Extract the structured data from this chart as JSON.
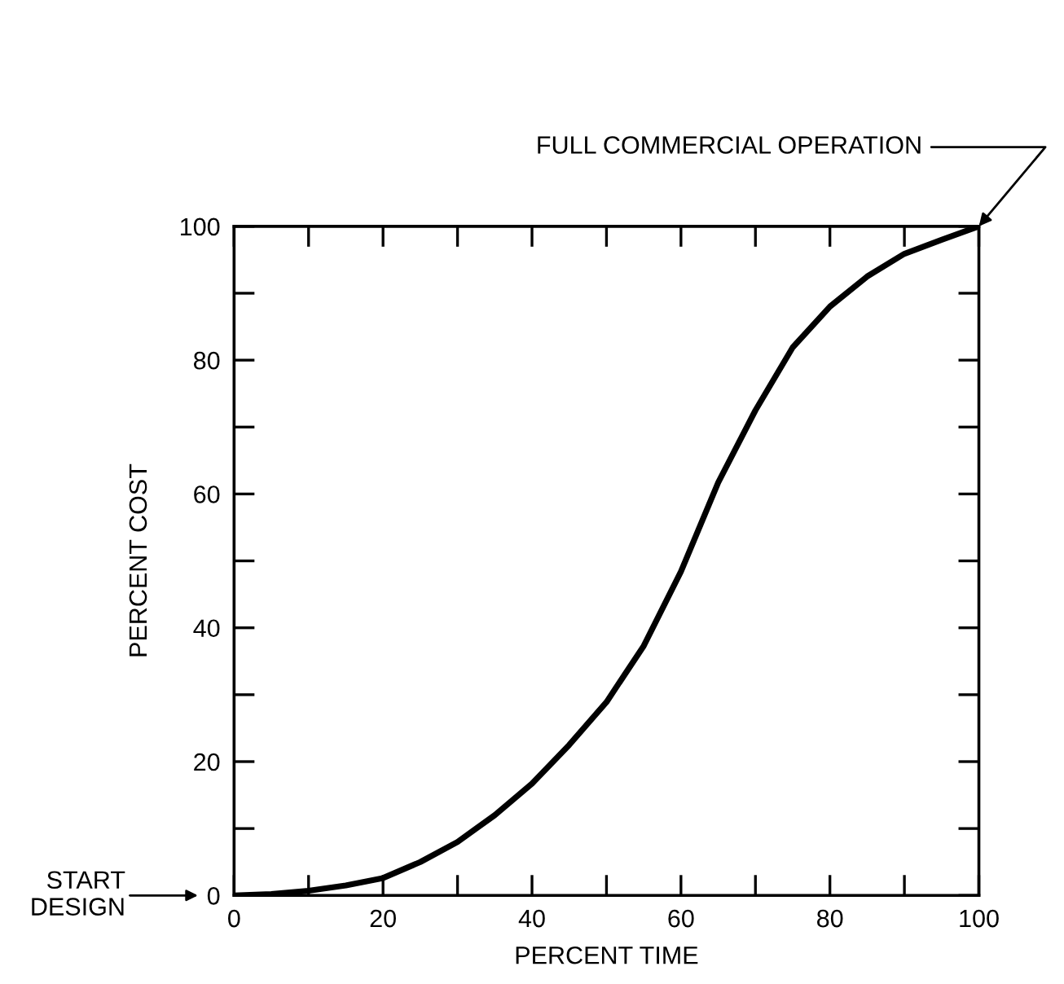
{
  "chart_data": {
    "type": "line",
    "xlabel": "PERCENT TIME",
    "ylabel": "PERCENT COST",
    "x": [
      0,
      5,
      10,
      15,
      20,
      25,
      30,
      35,
      40,
      45,
      50,
      55,
      60,
      65,
      70,
      75,
      80,
      85,
      90,
      95,
      100
    ],
    "series": [
      {
        "color": "#000000",
        "values": [
          0,
          0.2,
          0.7,
          1.5,
          2.6,
          5,
          8,
          12,
          16.7,
          22.5,
          28.9,
          37.3,
          48.4,
          61.7,
          72.5,
          81.9,
          88,
          92.5,
          95.9,
          98,
          100
        ]
      }
    ],
    "xlim": [
      0,
      100
    ],
    "ylim": [
      0,
      100
    ],
    "xticks": [
      0,
      {
        "value": 10,
        "label": null
      },
      20,
      {
        "value": 30,
        "label": null
      },
      40,
      {
        "value": 50,
        "label": null
      },
      60,
      {
        "value": 70,
        "label": null
      },
      80,
      {
        "value": 90,
        "label": null
      },
      100
    ],
    "yticks": [
      0,
      {
        "value": 10,
        "label": null
      },
      20,
      {
        "value": 30,
        "label": null
      },
      40,
      {
        "value": 50,
        "label": null
      },
      60,
      {
        "value": 70,
        "label": null
      },
      80,
      {
        "value": 90,
        "label": null
      },
      100
    ],
    "annotations": [
      {
        "text": "FULL COMMERCIAL OPERATION",
        "x": 100,
        "y": 100
      },
      "START\nDESIGN"
    ],
    "grid": false,
    "legend": false,
    "marker": "none",
    "line_style": "solid"
  }
}
